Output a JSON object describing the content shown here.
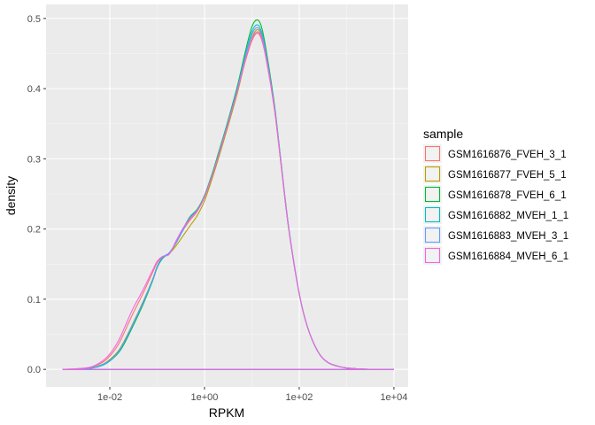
{
  "chart_data": {
    "type": "line",
    "subtype": "density",
    "xlabel": "RPKM",
    "ylabel": "density",
    "x_scale": "log10",
    "xlim": [
      0.00045,
      20000
    ],
    "ylim": [
      -0.025,
      0.52
    ],
    "x_ticks": [
      {
        "value": 0.01,
        "label": "1e-02"
      },
      {
        "value": 1,
        "label": "1e+00"
      },
      {
        "value": 100,
        "label": "1e+02"
      },
      {
        "value": 10000,
        "label": "1e+04"
      }
    ],
    "y_ticks": [
      {
        "value": 0.0,
        "label": "0.0"
      },
      {
        "value": 0.1,
        "label": "0.1"
      },
      {
        "value": 0.2,
        "label": "0.2"
      },
      {
        "value": 0.3,
        "label": "0.3"
      },
      {
        "value": 0.4,
        "label": "0.4"
      },
      {
        "value": 0.5,
        "label": "0.5"
      }
    ],
    "grid": true,
    "background": "#EBEBEB",
    "legend": {
      "title": "sample",
      "position": "right"
    },
    "x": [
      0.001,
      0.002,
      0.004,
      0.007,
      0.01,
      0.015,
      0.02,
      0.03,
      0.05,
      0.08,
      0.1,
      0.13,
      0.18,
      0.25,
      0.35,
      0.5,
      0.7,
      1,
      1.5,
      2,
      3,
      5,
      7,
      10,
      13,
      16,
      20,
      30,
      40,
      60,
      100,
      150,
      250,
      400,
      700,
      1000,
      2000,
      4000,
      10000
    ],
    "series": [
      {
        "name": "GSM1616876_FVEH_3_1",
        "color": "#F8766D",
        "values": [
          0,
          0.0008,
          0.003,
          0.01,
          0.019,
          0.035,
          0.052,
          0.078,
          0.108,
          0.138,
          0.152,
          0.16,
          0.165,
          0.18,
          0.198,
          0.213,
          0.225,
          0.245,
          0.278,
          0.305,
          0.345,
          0.397,
          0.435,
          0.468,
          0.479,
          0.47,
          0.442,
          0.37,
          0.3,
          0.2,
          0.108,
          0.06,
          0.025,
          0.01,
          0.004,
          0.002,
          0.0005,
          0.0001,
          0
        ]
      },
      {
        "name": "GSM1616877_FVEH_5_1",
        "color": "#B79F00",
        "values": [
          0,
          0.0005,
          0.002,
          0.007,
          0.014,
          0.026,
          0.04,
          0.064,
          0.096,
          0.128,
          0.146,
          0.159,
          0.165,
          0.176,
          0.19,
          0.205,
          0.219,
          0.24,
          0.275,
          0.302,
          0.342,
          0.395,
          0.436,
          0.472,
          0.484,
          0.475,
          0.446,
          0.372,
          0.301,
          0.201,
          0.108,
          0.06,
          0.025,
          0.01,
          0.004,
          0.002,
          0.0005,
          0.0001,
          0
        ]
      },
      {
        "name": "GSM1616878_FVEH_6_1",
        "color": "#00BA38",
        "values": [
          0,
          0.0004,
          0.0015,
          0.006,
          0.012,
          0.023,
          0.036,
          0.06,
          0.092,
          0.126,
          0.145,
          0.158,
          0.166,
          0.18,
          0.2,
          0.218,
          0.228,
          0.248,
          0.282,
          0.31,
          0.35,
          0.405,
          0.448,
          0.488,
          0.498,
          0.488,
          0.455,
          0.377,
          0.304,
          0.202,
          0.108,
          0.06,
          0.025,
          0.01,
          0.004,
          0.002,
          0.0005,
          0.0001,
          0
        ]
      },
      {
        "name": "GSM1616882_MVEH_1_1",
        "color": "#00BFC4",
        "values": [
          0,
          0.0004,
          0.0016,
          0.006,
          0.012,
          0.024,
          0.038,
          0.062,
          0.094,
          0.127,
          0.146,
          0.159,
          0.166,
          0.181,
          0.199,
          0.217,
          0.227,
          0.247,
          0.28,
          0.308,
          0.348,
          0.402,
          0.443,
          0.481,
          0.491,
          0.481,
          0.45,
          0.374,
          0.302,
          0.201,
          0.108,
          0.06,
          0.025,
          0.01,
          0.004,
          0.002,
          0.0005,
          0.0001,
          0
        ]
      },
      {
        "name": "GSM1616883_MVEH_3_1",
        "color": "#619CFF",
        "values": [
          0,
          0.0005,
          0.0018,
          0.007,
          0.013,
          0.025,
          0.039,
          0.063,
          0.095,
          0.128,
          0.147,
          0.16,
          0.166,
          0.18,
          0.198,
          0.216,
          0.226,
          0.246,
          0.279,
          0.306,
          0.346,
          0.4,
          0.441,
          0.477,
          0.487,
          0.478,
          0.448,
          0.373,
          0.302,
          0.201,
          0.108,
          0.06,
          0.025,
          0.01,
          0.004,
          0.002,
          0.0005,
          0.0001,
          0
        ]
      },
      {
        "name": "GSM1616884_MVEH_6_1",
        "color": "#F564E3",
        "values": [
          0,
          0.001,
          0.0035,
          0.012,
          0.022,
          0.04,
          0.058,
          0.085,
          0.113,
          0.141,
          0.154,
          0.161,
          0.164,
          0.183,
          0.201,
          0.215,
          0.226,
          0.246,
          0.279,
          0.306,
          0.346,
          0.398,
          0.437,
          0.47,
          0.481,
          0.472,
          0.444,
          0.371,
          0.301,
          0.201,
          0.108,
          0.06,
          0.025,
          0.01,
          0.004,
          0.002,
          0.0005,
          0.0001,
          0
        ]
      }
    ]
  }
}
